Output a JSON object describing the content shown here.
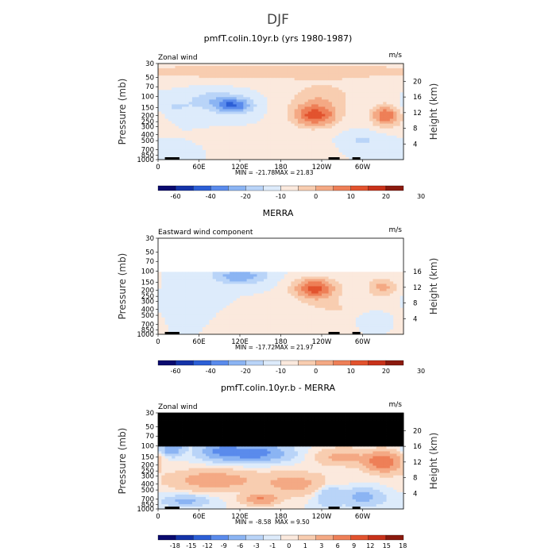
{
  "figure": {
    "title": "DJF",
    "colors": {
      "wind_scale": [
        "#0a0a6e",
        "#1433a8",
        "#2c5fd6",
        "#5a8bec",
        "#8bb4f3",
        "#b9d4f8",
        "#ddebfb",
        "#fbe9dd",
        "#f8cdb0",
        "#f4a984",
        "#ee7f57",
        "#e2532e",
        "#c8321a",
        "#8b1a0e"
      ],
      "diff_scale": [
        "#0a0a6e",
        "#1433a8",
        "#2c5fd6",
        "#5a8bec",
        "#8bb4f3",
        "#b9d4f8",
        "#ddebfb",
        "#fbe9dd",
        "#f8cdb0",
        "#f4a984",
        "#ee7f57",
        "#e2532e",
        "#c8321a",
        "#8b1a0e"
      ],
      "masked": "#000000"
    }
  },
  "chart_data": [
    {
      "type": "heatmap",
      "title": "pmfT.colin.10yr.b (yrs 1980-1987)",
      "left_label": "Zonal wind",
      "units": "m/s",
      "ylabel": "Pressure (mb)",
      "y2label": "Height (km)",
      "x_ticks": [
        "0",
        "60E",
        "120E",
        "180",
        "120W",
        "60W"
      ],
      "x_tick_values": [
        0,
        60,
        120,
        180,
        240,
        300
      ],
      "xlim": [
        0,
        360
      ],
      "y_ticks": [
        "30",
        "50",
        "70",
        "100",
        "150",
        "200",
        "250",
        "300",
        "400",
        "500",
        "700",
        "850",
        "1000"
      ],
      "y_tick_values": [
        30,
        50,
        70,
        100,
        150,
        200,
        250,
        300,
        400,
        500,
        700,
        850,
        1000
      ],
      "ylim": [
        30,
        1000
      ],
      "y_scale": "log",
      "y2_ticks": [
        "4",
        "8",
        "12",
        "16",
        "20"
      ],
      "y2_tick_values": [
        4,
        8,
        12,
        16,
        20
      ],
      "stats": {
        "min_label": "MIN =",
        "min": "-21.78",
        "max_label": "MAX =",
        "max": "21.83"
      },
      "colorbar_labels": [
        "-60",
        "-40",
        "-20",
        "-10",
        "0",
        "10",
        "20",
        "30"
      ],
      "blobs": [
        {
          "lon": 110,
          "p": 140,
          "v": -19,
          "rl": 28,
          "rp": 0.28
        },
        {
          "lon": 80,
          "p": 110,
          "v": -7,
          "rl": 40,
          "rp": 0.35
        },
        {
          "lon": 20,
          "p": 150,
          "v": -5,
          "rl": 35,
          "rp": 0.3
        },
        {
          "lon": 230,
          "p": 200,
          "v": 21.8,
          "rl": 34,
          "rp": 0.42
        },
        {
          "lon": 240,
          "p": 100,
          "v": 8,
          "rl": 50,
          "rp": 0.5
        },
        {
          "lon": 335,
          "p": 200,
          "v": 20,
          "rl": 22,
          "rp": 0.4
        },
        {
          "lon": 300,
          "p": 500,
          "v": -6,
          "rl": 30,
          "rp": 0.3
        },
        {
          "lon": 180,
          "p": 600,
          "v": 4,
          "rl": 60,
          "rp": 0.35
        },
        {
          "lon": 180,
          "p": 40,
          "v": 8,
          "rl": 300,
          "rp": 0.35
        },
        {
          "lon": 20,
          "p": 750,
          "v": -4,
          "rl": 25,
          "rp": 0.2
        }
      ],
      "masked_top_p": null,
      "show_y2_20": true
    },
    {
      "type": "heatmap",
      "title": "MERRA",
      "left_label": "Eastward wind component",
      "units": "m/s",
      "ylabel": "Pressure (mb)",
      "y2label": "Height (km)",
      "x_ticks": [
        "0",
        "60E",
        "120E",
        "180",
        "120W",
        "60W"
      ],
      "x_tick_values": [
        0,
        60,
        120,
        180,
        240,
        300
      ],
      "xlim": [
        0,
        360
      ],
      "y_ticks": [
        "30",
        "50",
        "70",
        "100",
        "150",
        "200",
        "250",
        "300",
        "400",
        "500",
        "700",
        "850",
        "1000"
      ],
      "y_tick_values": [
        30,
        50,
        70,
        100,
        150,
        200,
        250,
        300,
        400,
        500,
        700,
        850,
        1000
      ],
      "ylim": [
        30,
        1000
      ],
      "y_scale": "log",
      "y2_ticks": [
        "4",
        "8",
        "12",
        "16"
      ],
      "y2_tick_values": [
        4,
        8,
        12,
        16
      ],
      "stats": {
        "min_label": "MIN =",
        "min": "-17.72",
        "max_label": "MAX =",
        "max": "21.97"
      },
      "colorbar_labels": [
        "-60",
        "-40",
        "-20",
        "-10",
        "0",
        "10",
        "20",
        "30"
      ],
      "blobs": [
        {
          "lon": 230,
          "p": 190,
          "v": 22,
          "rl": 32,
          "rp": 0.4
        },
        {
          "lon": 330,
          "p": 180,
          "v": 12,
          "rl": 22,
          "rp": 0.35
        },
        {
          "lon": 120,
          "p": 120,
          "v": -14,
          "rl": 40,
          "rp": 0.3
        },
        {
          "lon": 40,
          "p": 250,
          "v": -4,
          "rl": 40,
          "rp": 0.5
        },
        {
          "lon": 270,
          "p": 400,
          "v": 5,
          "rl": 60,
          "rp": 0.4
        },
        {
          "lon": 310,
          "p": 500,
          "v": -4,
          "rl": 25,
          "rp": 0.3
        },
        {
          "lon": 170,
          "p": 500,
          "v": 3,
          "rl": 50,
          "rp": 0.4
        }
      ],
      "masked_top_p": 100,
      "show_y2_20": false
    },
    {
      "type": "heatmap",
      "title": "pmfT.colin.10yr.b - MERRA",
      "left_label": "Zonal wind",
      "units": "m/s",
      "ylabel": "Pressure (mb)",
      "y2label": "Height (km)",
      "x_ticks": [
        "0",
        "60E",
        "120E",
        "180",
        "120W",
        "60W"
      ],
      "x_tick_values": [
        0,
        60,
        120,
        180,
        240,
        300
      ],
      "xlim": [
        0,
        360
      ],
      "y_ticks": [
        "30",
        "50",
        "70",
        "100",
        "150",
        "200",
        "250",
        "300",
        "400",
        "500",
        "700",
        "850",
        "1000"
      ],
      "y_tick_values": [
        30,
        50,
        70,
        100,
        150,
        200,
        250,
        300,
        400,
        500,
        700,
        850,
        1000
      ],
      "ylim": [
        30,
        1000
      ],
      "y_scale": "log",
      "y2_ticks": [
        "4",
        "8",
        "12",
        "16",
        "20"
      ],
      "y2_tick_values": [
        4,
        8,
        12,
        16,
        20
      ],
      "stats": {
        "min_label": "MIN =",
        "min": "-8.58",
        "max_label": "MAX =",
        "max": "9.50"
      },
      "colorbar_labels": [
        "-18",
        "-15",
        "-12",
        "-9",
        "-6",
        "-3",
        "-1",
        "0",
        "1",
        "3",
        "6",
        "9",
        "12",
        "15",
        "18"
      ],
      "blobs": [
        {
          "lon": 140,
          "p": 130,
          "v": -8,
          "rl": 45,
          "rp": 0.3
        },
        {
          "lon": 90,
          "p": 120,
          "v": -5,
          "rl": 30,
          "rp": 0.3
        },
        {
          "lon": 20,
          "p": 110,
          "v": -6,
          "rl": 15,
          "rp": 0.25
        },
        {
          "lon": 330,
          "p": 180,
          "v": 9,
          "rl": 25,
          "rp": 0.35
        },
        {
          "lon": 270,
          "p": 150,
          "v": 4,
          "rl": 35,
          "rp": 0.3
        },
        {
          "lon": 80,
          "p": 350,
          "v": 5,
          "rl": 60,
          "rp": 0.35
        },
        {
          "lon": 200,
          "p": 400,
          "v": 4,
          "rl": 50,
          "rp": 0.4
        },
        {
          "lon": 150,
          "p": 700,
          "v": 6,
          "rl": 25,
          "rp": 0.2
        },
        {
          "lon": 250,
          "p": 600,
          "v": -3,
          "rl": 20,
          "rp": 0.4
        },
        {
          "lon": 300,
          "p": 650,
          "v": -4,
          "rl": 30,
          "rp": 0.3
        },
        {
          "lon": 40,
          "p": 750,
          "v": -4,
          "rl": 30,
          "rp": 0.2
        }
      ],
      "masked_top_p": 100,
      "show_y2_20": true
    }
  ]
}
